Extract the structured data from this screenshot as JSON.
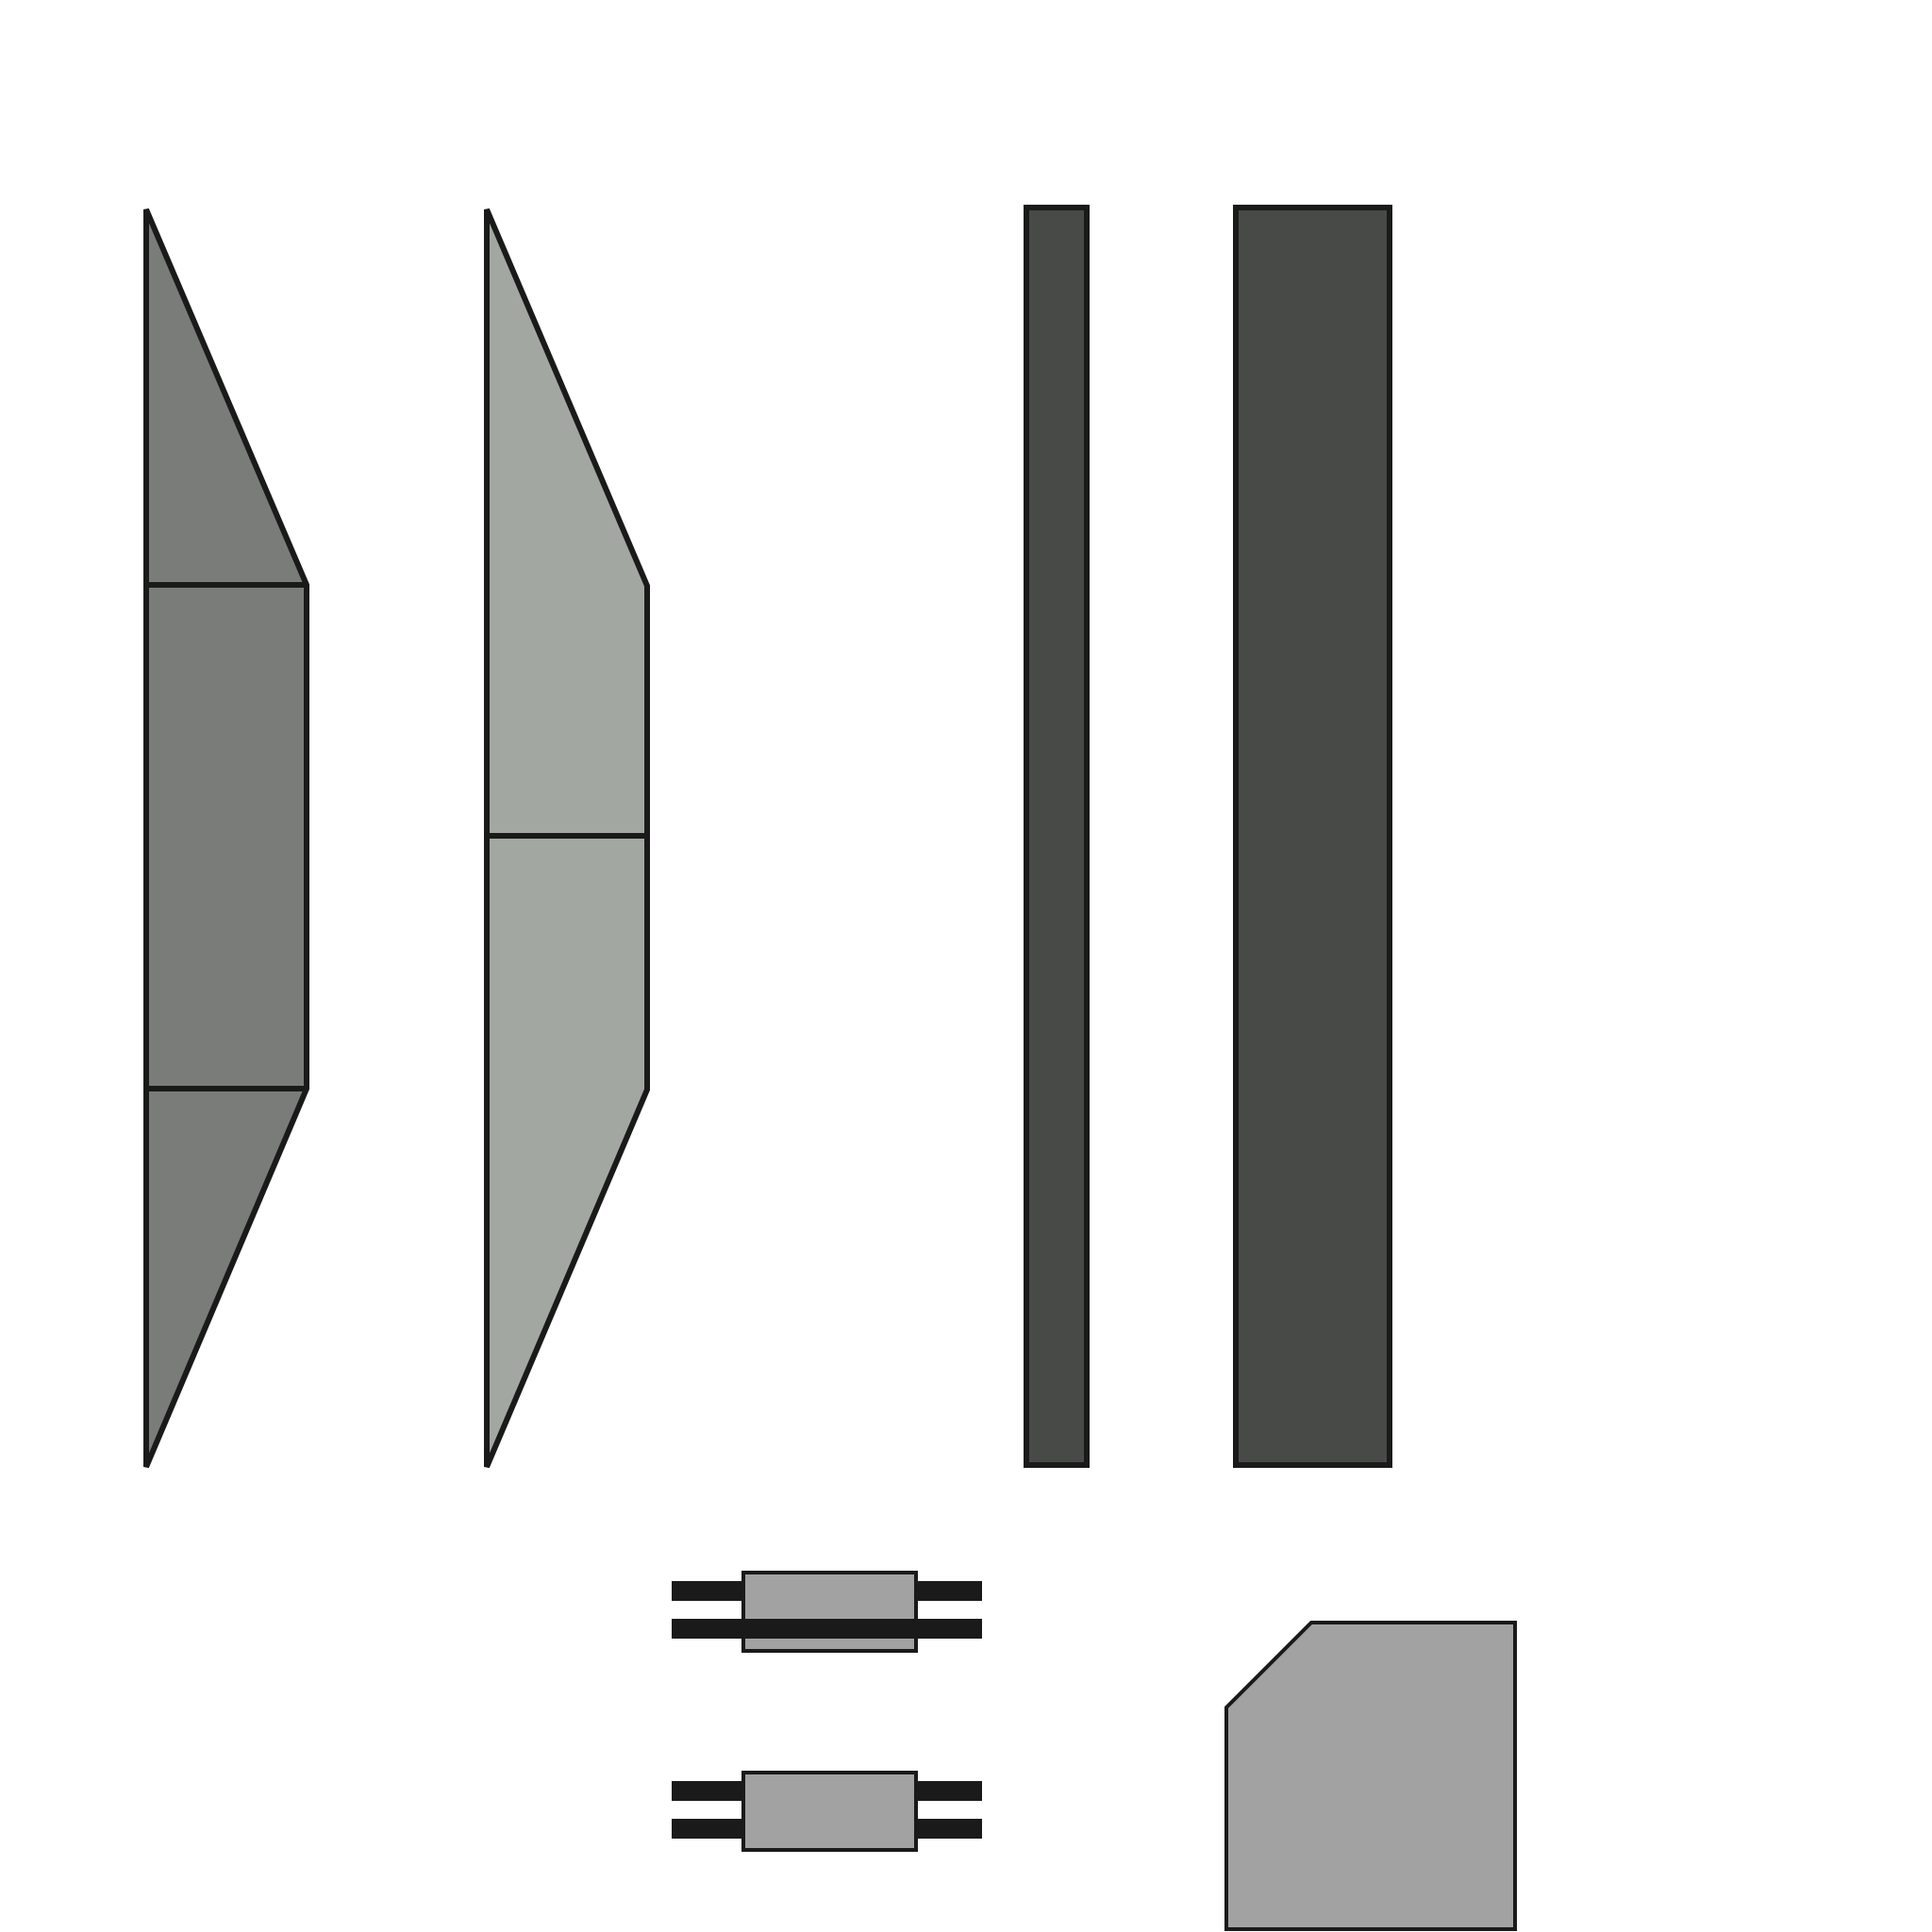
{
  "colors": {
    "background": "#ffffff",
    "stroke": "#1a1a1a",
    "medium_gray": "#7a7c7a",
    "light_sage_gray": "#a3a7a2",
    "dark_charcoal": "#484a48",
    "light_gray": "#a2a2a2"
  },
  "shapes": [
    {
      "id": "left-profile-panel",
      "kind": "tapered panel",
      "segments": 3,
      "fill": "medium_gray"
    },
    {
      "id": "second-profile-panel",
      "kind": "tapered panel",
      "segments": 2,
      "fill": "light_sage_gray"
    },
    {
      "id": "thin-vertical-bar",
      "kind": "rectangle",
      "fill": "dark_charcoal"
    },
    {
      "id": "wide-vertical-bar",
      "kind": "rectangle",
      "fill": "dark_charcoal"
    },
    {
      "id": "upper-connector",
      "kind": "connector with two pairs of rails",
      "fill": "light_gray"
    },
    {
      "id": "lower-connector",
      "kind": "connector with two pairs of rails",
      "fill": "light_gray"
    },
    {
      "id": "chamfered-block",
      "kind": "block with chamfered top-left corner",
      "fill": "light_gray"
    }
  ]
}
